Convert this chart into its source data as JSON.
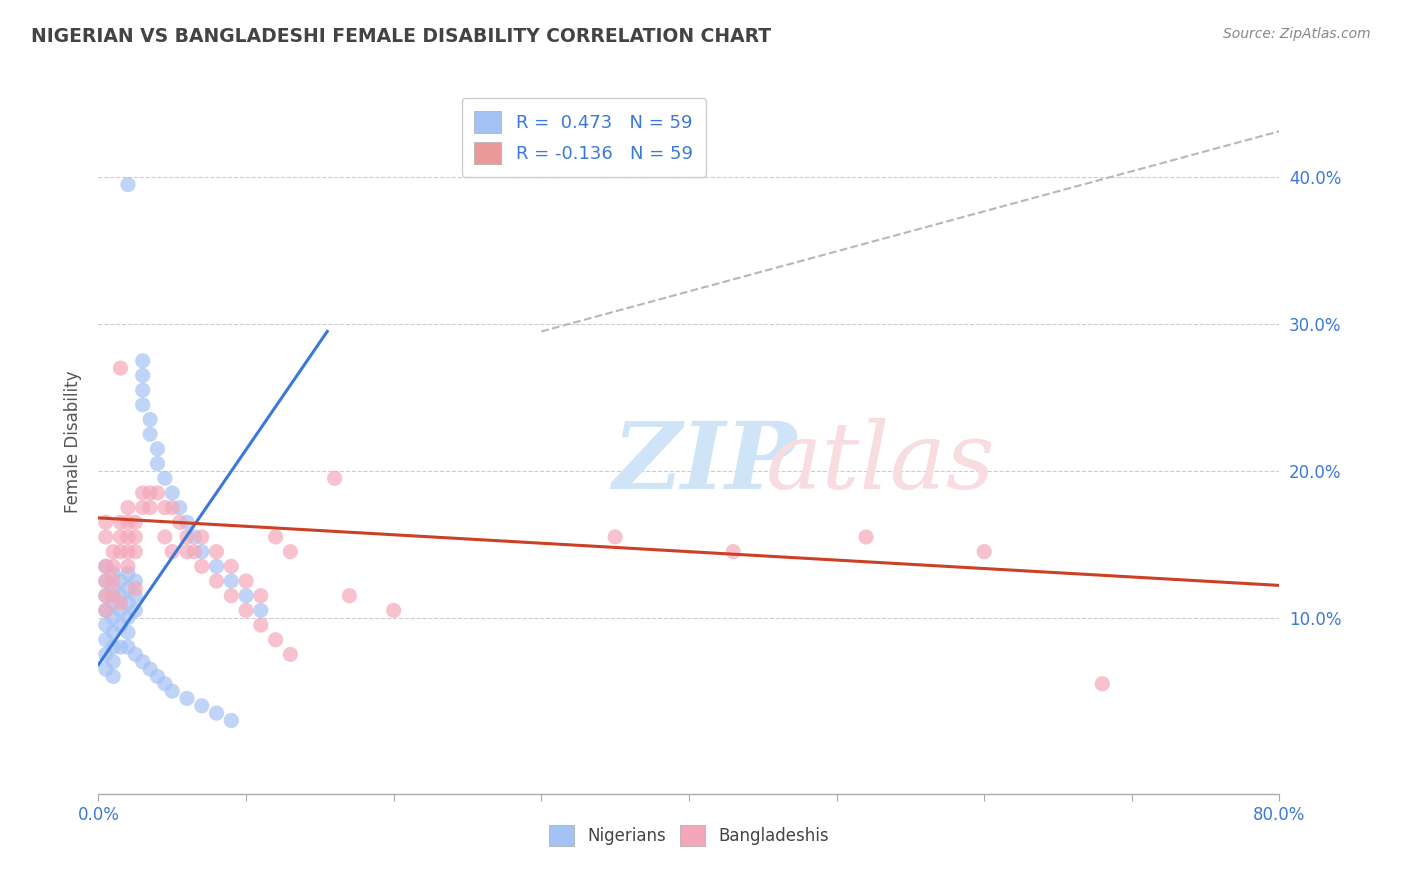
{
  "title": "NIGERIAN VS BANGLADESHI FEMALE DISABILITY CORRELATION CHART",
  "source": "Source: ZipAtlas.com",
  "ylabel": "Female Disability",
  "xlim": [
    0.0,
    0.8
  ],
  "ylim": [
    -0.02,
    0.46
  ],
  "yticks": [
    0.1,
    0.2,
    0.3,
    0.4
  ],
  "ytick_labels": [
    "10.0%",
    "20.0%",
    "30.0%",
    "40.0%"
  ],
  "xticks": [
    0.0,
    0.1,
    0.2,
    0.3,
    0.4,
    0.5,
    0.6,
    0.7,
    0.8
  ],
  "xtick_labels": [
    "0.0%",
    "",
    "",
    "",
    "",
    "",
    "",
    "",
    "80.0%"
  ],
  "legend_entries": [
    {
      "label": "R =  0.473   N = 59",
      "color": "#a4c2f4"
    },
    {
      "label": "R = -0.136   N = 59",
      "color": "#ea9999"
    }
  ],
  "nigerian_scatter_color": "#a4c2f4",
  "bangladeshi_scatter_color": "#f4a7b9",
  "nigerian_line_color": "#3c78d8",
  "bangladeshi_line_color": "#cc4125",
  "diagonal_line_color": "#b7b7b7",
  "background_color": "#ffffff",
  "grid_color": "#cccccc",
  "title_color": "#434343",
  "axis_label_color": "#3c78d8",
  "nigerian_points": [
    [
      0.005,
      0.135
    ],
    [
      0.005,
      0.125
    ],
    [
      0.005,
      0.115
    ],
    [
      0.005,
      0.105
    ],
    [
      0.005,
      0.095
    ],
    [
      0.005,
      0.085
    ],
    [
      0.005,
      0.075
    ],
    [
      0.005,
      0.065
    ],
    [
      0.01,
      0.13
    ],
    [
      0.01,
      0.12
    ],
    [
      0.01,
      0.11
    ],
    [
      0.01,
      0.1
    ],
    [
      0.01,
      0.09
    ],
    [
      0.01,
      0.08
    ],
    [
      0.01,
      0.07
    ],
    [
      0.01,
      0.06
    ],
    [
      0.015,
      0.125
    ],
    [
      0.015,
      0.115
    ],
    [
      0.015,
      0.105
    ],
    [
      0.015,
      0.095
    ],
    [
      0.02,
      0.13
    ],
    [
      0.02,
      0.12
    ],
    [
      0.02,
      0.11
    ],
    [
      0.02,
      0.1
    ],
    [
      0.02,
      0.09
    ],
    [
      0.02,
      0.08
    ],
    [
      0.025,
      0.125
    ],
    [
      0.025,
      0.115
    ],
    [
      0.03,
      0.275
    ],
    [
      0.03,
      0.265
    ],
    [
      0.03,
      0.255
    ],
    [
      0.03,
      0.245
    ],
    [
      0.035,
      0.235
    ],
    [
      0.035,
      0.225
    ],
    [
      0.04,
      0.215
    ],
    [
      0.04,
      0.205
    ],
    [
      0.045,
      0.195
    ],
    [
      0.05,
      0.185
    ],
    [
      0.055,
      0.175
    ],
    [
      0.06,
      0.165
    ],
    [
      0.065,
      0.155
    ],
    [
      0.07,
      0.145
    ],
    [
      0.08,
      0.135
    ],
    [
      0.09,
      0.125
    ],
    [
      0.1,
      0.115
    ],
    [
      0.11,
      0.105
    ],
    [
      0.03,
      0.07
    ],
    [
      0.035,
      0.065
    ],
    [
      0.04,
      0.06
    ],
    [
      0.045,
      0.055
    ],
    [
      0.05,
      0.05
    ],
    [
      0.06,
      0.045
    ],
    [
      0.07,
      0.04
    ],
    [
      0.08,
      0.035
    ],
    [
      0.09,
      0.03
    ],
    [
      0.025,
      0.075
    ],
    [
      0.02,
      0.395
    ],
    [
      0.025,
      0.105
    ],
    [
      0.015,
      0.08
    ]
  ],
  "bangladeshi_points": [
    [
      0.005,
      0.135
    ],
    [
      0.005,
      0.125
    ],
    [
      0.005,
      0.115
    ],
    [
      0.005,
      0.105
    ],
    [
      0.005,
      0.165
    ],
    [
      0.005,
      0.155
    ],
    [
      0.01,
      0.145
    ],
    [
      0.01,
      0.135
    ],
    [
      0.01,
      0.125
    ],
    [
      0.01,
      0.115
    ],
    [
      0.015,
      0.165
    ],
    [
      0.015,
      0.155
    ],
    [
      0.015,
      0.145
    ],
    [
      0.02,
      0.175
    ],
    [
      0.02,
      0.165
    ],
    [
      0.02,
      0.155
    ],
    [
      0.02,
      0.145
    ],
    [
      0.025,
      0.165
    ],
    [
      0.025,
      0.155
    ],
    [
      0.025,
      0.145
    ],
    [
      0.03,
      0.185
    ],
    [
      0.03,
      0.175
    ],
    [
      0.035,
      0.185
    ],
    [
      0.035,
      0.175
    ],
    [
      0.04,
      0.185
    ],
    [
      0.045,
      0.175
    ],
    [
      0.05,
      0.175
    ],
    [
      0.055,
      0.165
    ],
    [
      0.06,
      0.155
    ],
    [
      0.065,
      0.145
    ],
    [
      0.07,
      0.155
    ],
    [
      0.08,
      0.145
    ],
    [
      0.09,
      0.135
    ],
    [
      0.1,
      0.125
    ],
    [
      0.11,
      0.115
    ],
    [
      0.12,
      0.155
    ],
    [
      0.13,
      0.145
    ],
    [
      0.015,
      0.27
    ],
    [
      0.16,
      0.195
    ],
    [
      0.02,
      0.135
    ],
    [
      0.045,
      0.155
    ],
    [
      0.05,
      0.145
    ],
    [
      0.06,
      0.145
    ],
    [
      0.07,
      0.135
    ],
    [
      0.08,
      0.125
    ],
    [
      0.09,
      0.115
    ],
    [
      0.1,
      0.105
    ],
    [
      0.11,
      0.095
    ],
    [
      0.12,
      0.085
    ],
    [
      0.13,
      0.075
    ],
    [
      0.17,
      0.115
    ],
    [
      0.2,
      0.105
    ],
    [
      0.35,
      0.155
    ],
    [
      0.43,
      0.145
    ],
    [
      0.52,
      0.155
    ],
    [
      0.6,
      0.145
    ],
    [
      0.68,
      0.055
    ],
    [
      0.015,
      0.11
    ],
    [
      0.025,
      0.12
    ]
  ],
  "nigerian_line": [
    [
      0.0,
      0.068
    ],
    [
      0.155,
      0.295
    ]
  ],
  "bangladeshi_line": [
    [
      0.0,
      0.168
    ],
    [
      0.8,
      0.122
    ]
  ],
  "diagonal_line": [
    [
      0.3,
      0.295
    ],
    [
      0.85,
      0.445
    ]
  ]
}
